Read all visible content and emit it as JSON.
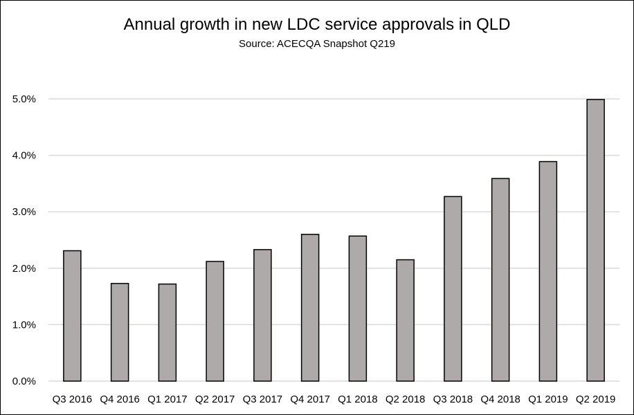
{
  "chart_data": {
    "type": "bar",
    "title": "Annual growth in new LDC service approvals in QLD",
    "subtitle": "Source: ACECQA Snapshot Q219",
    "xlabel": "",
    "ylabel": "",
    "categories": [
      "Q3 2016",
      "Q4 2016",
      "Q1 2017",
      "Q2 2017",
      "Q3 2017",
      "Q4 2017",
      "Q1 2018",
      "Q2 2018",
      "Q3 2018",
      "Q4 2018",
      "Q1 2019",
      "Q2 2019"
    ],
    "values": [
      2.31,
      1.73,
      1.72,
      2.12,
      2.33,
      2.6,
      2.57,
      2.15,
      3.27,
      3.59,
      3.89,
      4.99
    ],
    "ylim": [
      0,
      5
    ],
    "yticks": [
      "0.0%",
      "1.0%",
      "2.0%",
      "3.0%",
      "4.0%",
      "5.0%"
    ],
    "grid": true,
    "legend": "none",
    "colors": {
      "bar_fill": "#aeaaaa",
      "bar_stroke": "#000000",
      "grid": "#d9d9d9"
    }
  }
}
